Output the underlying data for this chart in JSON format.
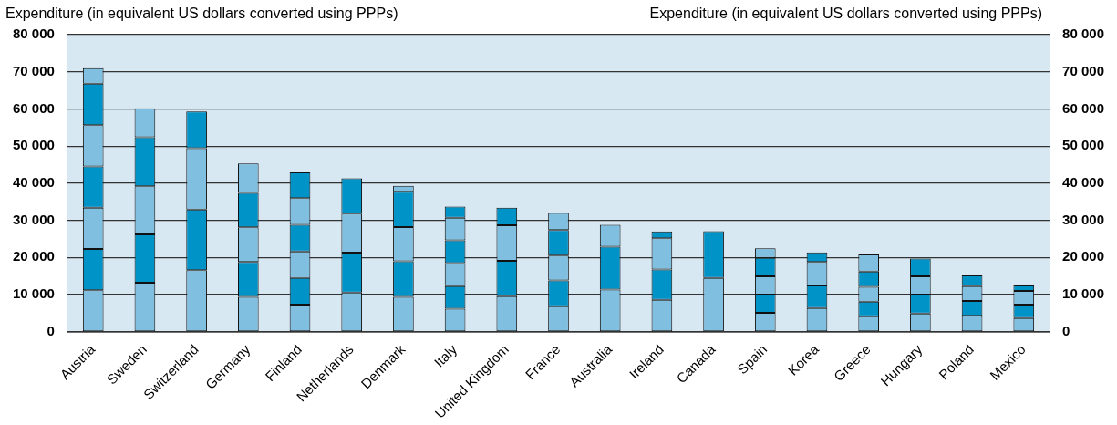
{
  "chart_data": {
    "type": "bar",
    "stacked": true,
    "ylabel": "Expenditure (in equivalent US dollars converted using PPPs)",
    "y2label": "Expenditure (in equivalent US dollars converted using PPPs)",
    "categories": [
      "Austria",
      "Sweden",
      "Switzerland",
      "Germany",
      "Finland",
      "Netherlands",
      "Denmark",
      "Italy",
      "United Kingdom",
      "France",
      "Australia",
      "Ireland",
      "Canada",
      "Spain",
      "Korea",
      "Greece",
      "Hungary",
      "Poland",
      "Mexico"
    ],
    "series": [
      {
        "color": "#80bfdf",
        "values": [
          11200,
          13200,
          16600,
          9400,
          7300,
          10600,
          9400,
          6200,
          9600,
          6900,
          11400,
          8600,
          14500,
          5100,
          6400,
          4200,
          4900,
          4300,
          3700
        ]
      },
      {
        "color": "#0093c8",
        "values": [
          11100,
          13000,
          16300,
          9400,
          7200,
          10700,
          9600,
          6100,
          9500,
          6900,
          11500,
          8200,
          12600,
          4900,
          6100,
          3900,
          5100,
          4000,
          3600
        ]
      },
      {
        "color": "#80bfdf",
        "values": [
          11100,
          13000,
          16500,
          9300,
          7100,
          10500,
          9200,
          6200,
          9600,
          6700,
          5900,
          8400,
          null,
          4900,
          6300,
          4000,
          4900,
          4000,
          3700
        ]
      },
      {
        "color": "#0093c8",
        "values": [
          11100,
          13200,
          9900,
          9300,
          7200,
          9500,
          9500,
          6100,
          4700,
          6900,
          null,
          1800,
          null,
          5000,
          2600,
          4100,
          4800,
          2900,
          1500
        ]
      },
      {
        "color": "#80bfdf",
        "values": [
          11100,
          7800,
          null,
          7900,
          7200,
          null,
          1600,
          6100,
          null,
          4600,
          null,
          null,
          null,
          2600,
          null,
          4600,
          null,
          null,
          null
        ]
      },
      {
        "color": "#0093c8",
        "values": [
          11200,
          null,
          null,
          null,
          6900,
          null,
          null,
          3000,
          null,
          null,
          null,
          null,
          null,
          null,
          null,
          null,
          null,
          null,
          null
        ]
      },
      {
        "color": "#80bfdf",
        "values": [
          4200,
          null,
          null,
          null,
          null,
          null,
          null,
          null,
          null,
          null,
          null,
          null,
          null,
          null,
          null,
          null,
          null,
          null,
          null
        ]
      }
    ],
    "ylim": [
      0,
      80000
    ],
    "yticks": [
      {
        "value": 0,
        "label": "0"
      },
      {
        "value": 10000,
        "label": "10 000"
      },
      {
        "value": 20000,
        "label": "20 000"
      },
      {
        "value": 30000,
        "label": "30 000"
      },
      {
        "value": 40000,
        "label": "40 000"
      },
      {
        "value": 50000,
        "label": "50 000"
      },
      {
        "value": 60000,
        "label": "60 000"
      },
      {
        "value": 70000,
        "label": "70 000"
      },
      {
        "value": 80000,
        "label": "80 000"
      }
    ],
    "y2lim": [
      0,
      80000
    ],
    "y2ticks": [
      {
        "value": 0,
        "label": "0"
      },
      {
        "value": 10000,
        "label": "10 000"
      },
      {
        "value": 20000,
        "label": "20 000"
      },
      {
        "value": 30000,
        "label": "30 000"
      },
      {
        "value": 40000,
        "label": "40 000"
      },
      {
        "value": 50000,
        "label": "50 000"
      },
      {
        "value": 60000,
        "label": "60 000"
      },
      {
        "value": 70000,
        "label": "70 000"
      },
      {
        "value": 80000,
        "label": "80 000"
      }
    ],
    "grid": "y",
    "legend": false
  }
}
